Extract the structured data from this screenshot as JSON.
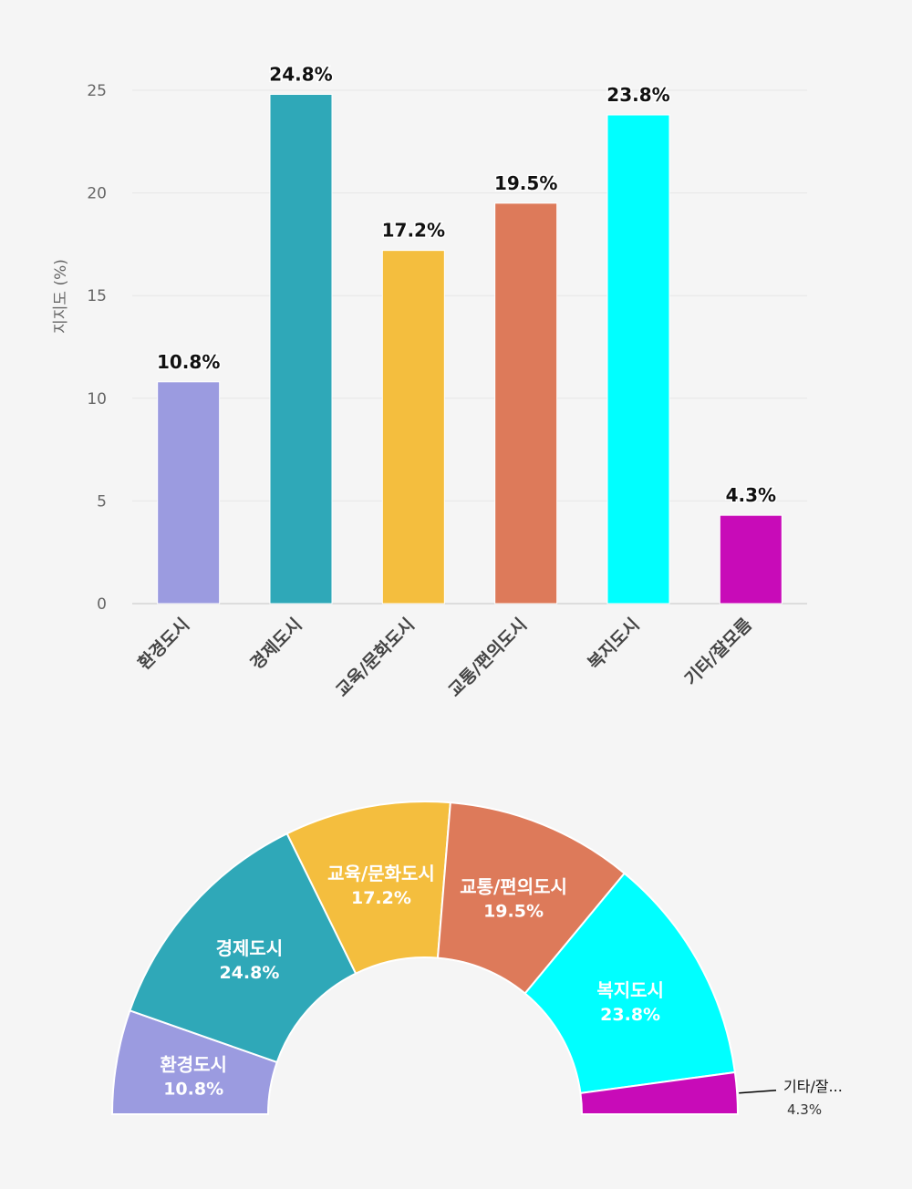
{
  "chart_data": [
    {
      "type": "bar",
      "categories": [
        "환경도시",
        "경제도시",
        "교육/문화도시",
        "교통/편의도시",
        "복지도시",
        "기타/잘모름"
      ],
      "values": [
        10.8,
        24.8,
        17.2,
        19.5,
        23.8,
        4.3
      ],
      "value_labels": [
        "10.8%",
        "24.8%",
        "17.2%",
        "19.5%",
        "23.8%",
        "4.3%"
      ],
      "colors": [
        "#9b9be0",
        "#2fa8b8",
        "#f4be3e",
        "#dd7a5a",
        "#00ffff",
        "#c80bb8"
      ],
      "ylabel": "지지도 (%)",
      "ylim": [
        0,
        25
      ],
      "yticks": [
        0,
        5,
        10,
        15,
        20,
        25
      ],
      "grid": true
    },
    {
      "type": "pie",
      "variant": "semi-donut",
      "categories": [
        "환경도시",
        "경제도시",
        "교육/문화도시",
        "교통/편의도시",
        "복지도시",
        "기타/잘..."
      ],
      "values": [
        10.8,
        24.8,
        17.2,
        19.5,
        23.8,
        4.3
      ],
      "value_labels": [
        "10.8%",
        "24.8%",
        "17.2%",
        "19.5%",
        "23.8%",
        "4.3%"
      ],
      "colors": [
        "#9b9be0",
        "#2fa8b8",
        "#f4be3e",
        "#dd7a5a",
        "#00ffff",
        "#c80bb8"
      ]
    }
  ]
}
